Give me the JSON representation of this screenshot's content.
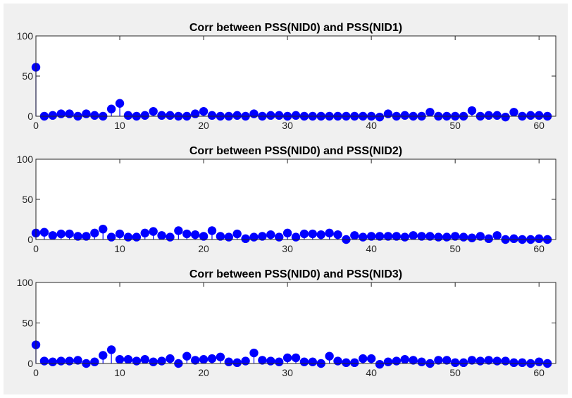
{
  "figure": {
    "background": "#f0f0f0",
    "stem_color": "#0000ff"
  },
  "chart_data": [
    {
      "type": "stem",
      "title": "Corr between PSS(NID0) and PSS(NID1)",
      "xlabel": "",
      "ylabel": "",
      "xlim": [
        0,
        62
      ],
      "ylim": [
        0,
        100
      ],
      "xticks": [
        0,
        10,
        20,
        30,
        40,
        50,
        60
      ],
      "yticks": [
        0,
        50,
        100
      ],
      "grid": false,
      "x": [
        0,
        1,
        2,
        3,
        4,
        5,
        6,
        7,
        8,
        9,
        10,
        11,
        12,
        13,
        14,
        15,
        16,
        17,
        18,
        19,
        20,
        21,
        22,
        23,
        24,
        25,
        26,
        27,
        28,
        29,
        30,
        31,
        32,
        33,
        34,
        35,
        36,
        37,
        38,
        39,
        40,
        41,
        42,
        43,
        44,
        45,
        46,
        47,
        48,
        49,
        50,
        51,
        52,
        53,
        54,
        55,
        56,
        57,
        58,
        59,
        60,
        61
      ],
      "values": [
        61,
        0,
        1,
        3,
        3,
        0,
        3,
        1,
        0,
        9,
        16,
        1,
        0,
        1,
        6,
        1,
        1,
        0,
        0,
        3,
        6,
        1,
        0,
        0,
        1,
        0,
        3,
        0,
        1,
        1,
        0,
        1,
        0,
        0,
        0,
        0,
        0,
        0,
        0,
        0,
        0,
        -1,
        3,
        0,
        1,
        0,
        0,
        5,
        0,
        0,
        0,
        0,
        7,
        0,
        1,
        1,
        -1,
        5,
        0,
        1,
        1,
        0
      ]
    },
    {
      "type": "stem",
      "title": "Corr between PSS(NID0) and PSS(NID2)",
      "xlabel": "",
      "ylabel": "",
      "xlim": [
        0,
        62
      ],
      "ylim": [
        0,
        100
      ],
      "xticks": [
        0,
        10,
        20,
        30,
        40,
        50,
        60
      ],
      "yticks": [
        0,
        50,
        100
      ],
      "grid": false,
      "x": [
        0,
        1,
        2,
        3,
        4,
        5,
        6,
        7,
        8,
        9,
        10,
        11,
        12,
        13,
        14,
        15,
        16,
        17,
        18,
        19,
        20,
        21,
        22,
        23,
        24,
        25,
        26,
        27,
        28,
        29,
        30,
        31,
        32,
        33,
        34,
        35,
        36,
        37,
        38,
        39,
        40,
        41,
        42,
        43,
        44,
        45,
        46,
        47,
        48,
        49,
        50,
        51,
        52,
        53,
        54,
        55,
        56,
        57,
        58,
        59,
        60,
        61
      ],
      "values": [
        8,
        9,
        5,
        7,
        7,
        4,
        4,
        8,
        13,
        3,
        7,
        3,
        3,
        8,
        10,
        5,
        3,
        11,
        7,
        6,
        4,
        11,
        4,
        3,
        7,
        1,
        3,
        4,
        6,
        3,
        8,
        3,
        7,
        7,
        6,
        8,
        6,
        0,
        5,
        3,
        4,
        4,
        4,
        4,
        3,
        5,
        4,
        4,
        3,
        3,
        4,
        3,
        2,
        4,
        1,
        5,
        0,
        1,
        0,
        0,
        1,
        0
      ]
    },
    {
      "type": "stem",
      "title": "Corr between PSS(NID0) and PSS(NID3)",
      "xlabel": "",
      "ylabel": "",
      "xlim": [
        0,
        62
      ],
      "ylim": [
        0,
        100
      ],
      "xticks": [
        0,
        10,
        20,
        30,
        40,
        50,
        60
      ],
      "yticks": [
        0,
        50,
        100
      ],
      "grid": false,
      "x": [
        0,
        1,
        2,
        3,
        4,
        5,
        6,
        7,
        8,
        9,
        10,
        11,
        12,
        13,
        14,
        15,
        16,
        17,
        18,
        19,
        20,
        21,
        22,
        23,
        24,
        25,
        26,
        27,
        28,
        29,
        30,
        31,
        32,
        33,
        34,
        35,
        36,
        37,
        38,
        39,
        40,
        41,
        42,
        43,
        44,
        45,
        46,
        47,
        48,
        49,
        50,
        51,
        52,
        53,
        54,
        55,
        56,
        57,
        58,
        59,
        60,
        61
      ],
      "values": [
        23,
        3,
        2,
        3,
        3,
        4,
        0,
        2,
        10,
        17,
        5,
        5,
        3,
        5,
        2,
        3,
        6,
        0,
        9,
        4,
        5,
        6,
        8,
        2,
        1,
        3,
        13,
        4,
        3,
        2,
        7,
        7,
        2,
        2,
        0,
        9,
        3,
        1,
        1,
        6,
        6,
        -1,
        2,
        3,
        5,
        4,
        2,
        0,
        4,
        4,
        1,
        1,
        4,
        3,
        4,
        3,
        3,
        1,
        1,
        0,
        2,
        0
      ]
    }
  ]
}
